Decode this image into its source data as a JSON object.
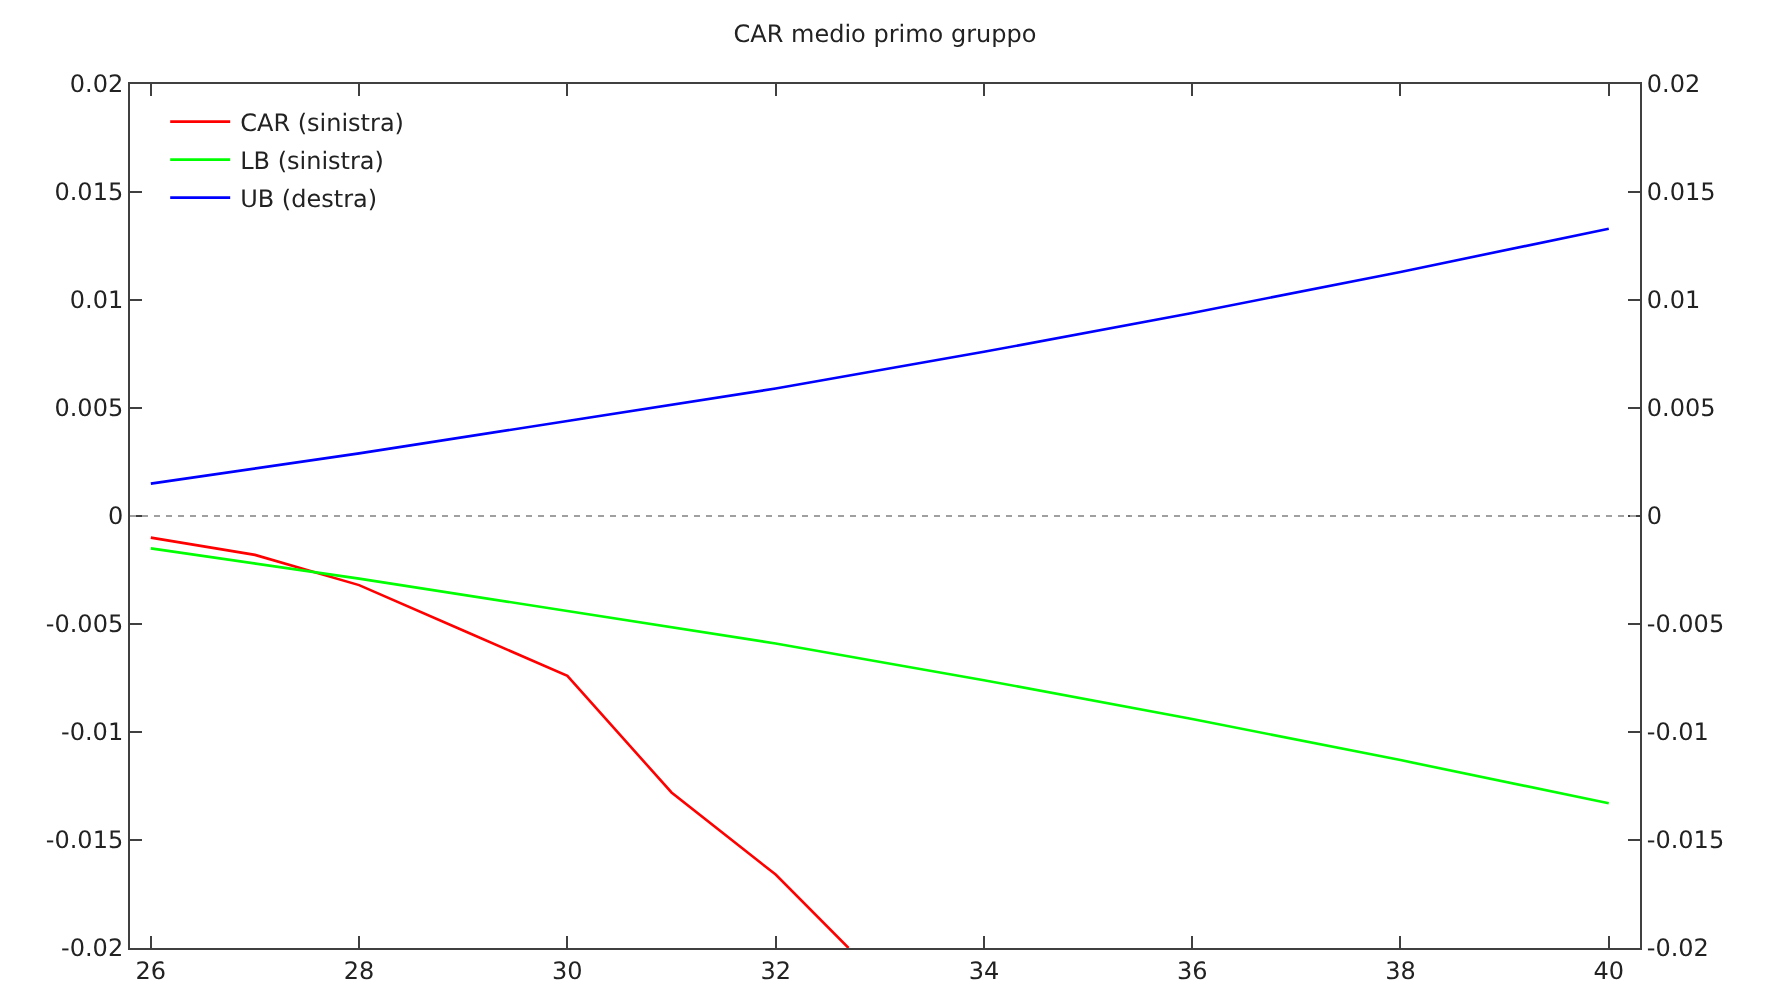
{
  "chart_data": {
    "type": "line",
    "title": "CAR medio primo gruppo",
    "series": [
      {
        "name": "CAR (sinistra)",
        "color": "#ff0000",
        "x": [
          26,
          27,
          28,
          29,
          30,
          31,
          32,
          32.7
        ],
        "values": [
          -0.001,
          -0.0018,
          -0.0032,
          -0.0053,
          -0.0074,
          -0.0128,
          -0.0166,
          -0.02
        ]
      },
      {
        "name": "LB (sinistra)",
        "color": "#00ff00",
        "x": [
          26,
          28,
          30,
          32,
          34,
          36,
          38,
          40
        ],
        "values": [
          -0.0015,
          -0.0029,
          -0.0044,
          -0.0059,
          -0.0076,
          -0.0094,
          -0.0113,
          -0.0133
        ]
      },
      {
        "name": "UB (destra)",
        "color": "#0000ff",
        "axis": "y2",
        "x": [
          26,
          28,
          30,
          32,
          34,
          36,
          38,
          40
        ],
        "values": [
          0.0015,
          0.0029,
          0.0044,
          0.0059,
          0.0076,
          0.0094,
          0.0113,
          0.0133
        ]
      }
    ],
    "xlim": [
      25.8,
      40.3
    ],
    "xticks": [
      26,
      28,
      30,
      32,
      34,
      36,
      38,
      40
    ],
    "ylim": [
      -0.02,
      0.02
    ],
    "yticks": [
      -0.02,
      -0.015,
      -0.01,
      -0.005,
      0,
      0.005,
      0.01,
      0.015,
      0.02
    ],
    "y2lim": [
      -0.02,
      0.02
    ],
    "y2ticks": [
      -0.02,
      -0.015,
      -0.01,
      -0.005,
      0,
      0.005,
      0.01,
      0.015,
      0.02
    ],
    "ref_lines": [
      {
        "axis": "y",
        "value": 0,
        "color": "#a0a0a0",
        "line_style": "dotted"
      }
    ],
    "legend": "top left",
    "marker": "none",
    "line_style": "solid"
  }
}
